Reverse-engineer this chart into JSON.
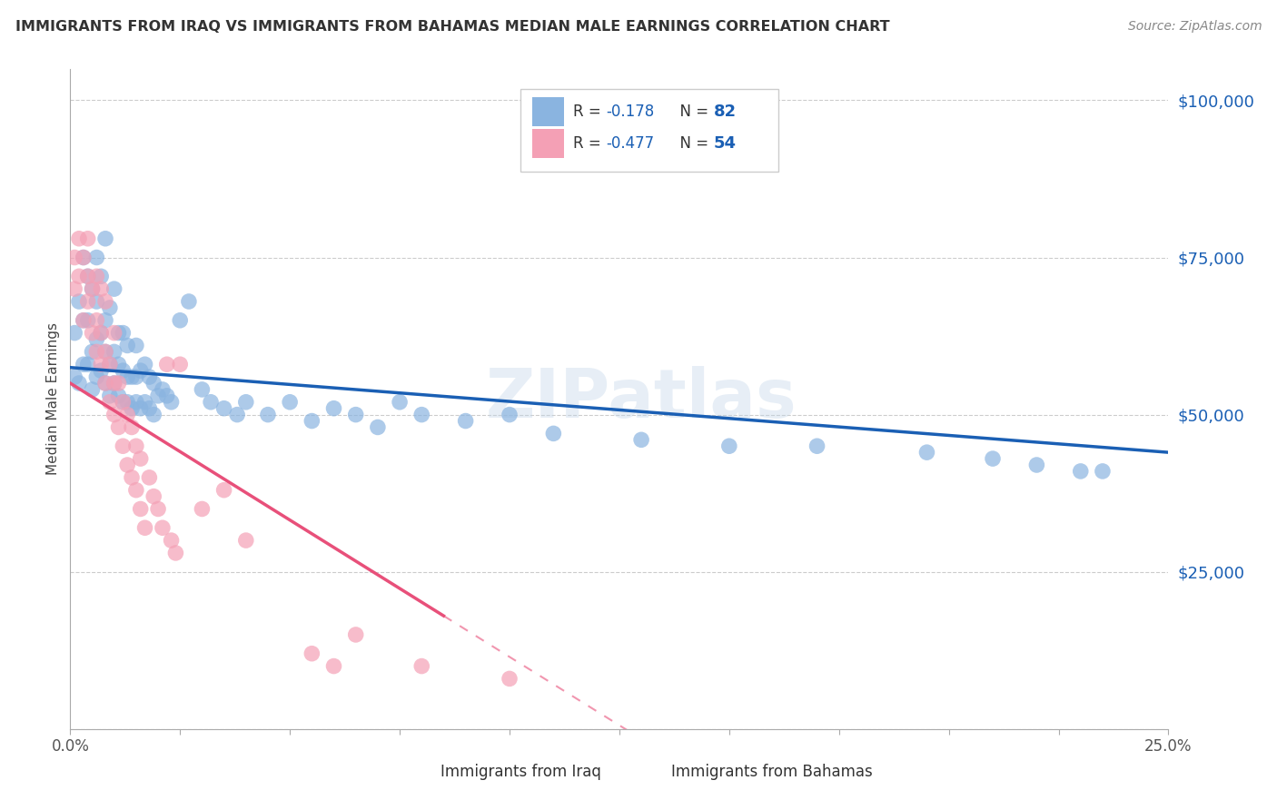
{
  "title": "IMMIGRANTS FROM IRAQ VS IMMIGRANTS FROM BAHAMAS MEDIAN MALE EARNINGS CORRELATION CHART",
  "source": "Source: ZipAtlas.com",
  "ylabel": "Median Male Earnings",
  "yticks": [
    0,
    25000,
    50000,
    75000,
    100000
  ],
  "ytick_labels": [
    "",
    "$25,000",
    "$50,000",
    "$75,000",
    "$100,000"
  ],
  "xlim": [
    0.0,
    0.25
  ],
  "ylim": [
    0,
    105000
  ],
  "iraq_R": "-0.178",
  "iraq_N": "82",
  "bahamas_R": "-0.477",
  "bahamas_N": "54",
  "iraq_color": "#8ab4e0",
  "bahamas_color": "#f4a0b5",
  "iraq_line_color": "#1a5fb4",
  "bahamas_line_color": "#e8507a",
  "watermark": "ZIPatlas",
  "background_color": "#ffffff",
  "iraq_scatter_x": [
    0.001,
    0.001,
    0.002,
    0.002,
    0.003,
    0.003,
    0.003,
    0.004,
    0.004,
    0.004,
    0.005,
    0.005,
    0.005,
    0.006,
    0.006,
    0.006,
    0.006,
    0.007,
    0.007,
    0.007,
    0.008,
    0.008,
    0.008,
    0.008,
    0.009,
    0.009,
    0.009,
    0.01,
    0.01,
    0.01,
    0.011,
    0.011,
    0.011,
    0.012,
    0.012,
    0.012,
    0.013,
    0.013,
    0.013,
    0.014,
    0.014,
    0.015,
    0.015,
    0.015,
    0.016,
    0.016,
    0.017,
    0.017,
    0.018,
    0.018,
    0.019,
    0.019,
    0.02,
    0.021,
    0.022,
    0.023,
    0.025,
    0.027,
    0.03,
    0.032,
    0.035,
    0.038,
    0.04,
    0.045,
    0.05,
    0.055,
    0.06,
    0.065,
    0.07,
    0.075,
    0.08,
    0.09,
    0.1,
    0.11,
    0.13,
    0.15,
    0.17,
    0.195,
    0.21,
    0.22,
    0.23,
    0.235
  ],
  "iraq_scatter_y": [
    56000,
    63000,
    55000,
    68000,
    58000,
    65000,
    75000,
    72000,
    58000,
    65000,
    54000,
    60000,
    70000,
    56000,
    62000,
    68000,
    75000,
    57000,
    63000,
    72000,
    55000,
    60000,
    65000,
    78000,
    53000,
    58000,
    67000,
    55000,
    60000,
    70000,
    53000,
    58000,
    63000,
    52000,
    57000,
    63000,
    52000,
    56000,
    61000,
    51000,
    56000,
    52000,
    56000,
    61000,
    51000,
    57000,
    52000,
    58000,
    51000,
    56000,
    50000,
    55000,
    53000,
    54000,
    53000,
    52000,
    65000,
    68000,
    54000,
    52000,
    51000,
    50000,
    52000,
    50000,
    52000,
    49000,
    51000,
    50000,
    48000,
    52000,
    50000,
    49000,
    50000,
    47000,
    46000,
    45000,
    45000,
    44000,
    43000,
    42000,
    41000,
    41000
  ],
  "bahamas_scatter_x": [
    0.001,
    0.001,
    0.002,
    0.002,
    0.003,
    0.003,
    0.004,
    0.004,
    0.004,
    0.005,
    0.005,
    0.006,
    0.006,
    0.006,
    0.007,
    0.007,
    0.007,
    0.008,
    0.008,
    0.008,
    0.009,
    0.009,
    0.01,
    0.01,
    0.01,
    0.011,
    0.011,
    0.012,
    0.012,
    0.013,
    0.013,
    0.014,
    0.014,
    0.015,
    0.015,
    0.016,
    0.016,
    0.017,
    0.018,
    0.019,
    0.02,
    0.021,
    0.022,
    0.023,
    0.024,
    0.025,
    0.03,
    0.035,
    0.04,
    0.055,
    0.06,
    0.065,
    0.08,
    0.1
  ],
  "bahamas_scatter_y": [
    70000,
    75000,
    72000,
    78000,
    65000,
    75000,
    68000,
    72000,
    78000,
    63000,
    70000,
    60000,
    65000,
    72000,
    58000,
    63000,
    70000,
    55000,
    60000,
    68000,
    52000,
    58000,
    50000,
    55000,
    63000,
    48000,
    55000,
    45000,
    52000,
    42000,
    50000,
    40000,
    48000,
    38000,
    45000,
    35000,
    43000,
    32000,
    40000,
    37000,
    35000,
    32000,
    58000,
    30000,
    28000,
    58000,
    35000,
    38000,
    30000,
    12000,
    10000,
    15000,
    10000,
    8000
  ],
  "iraq_line_x0": 0.0,
  "iraq_line_x1": 0.25,
  "iraq_line_y0": 57500,
  "iraq_line_y1": 44000,
  "bahamas_line_solid_x0": 0.0,
  "bahamas_line_solid_x1": 0.085,
  "bahamas_line_y0": 55000,
  "bahamas_line_y1": 18000,
  "bahamas_line_dash_x0": 0.085,
  "bahamas_line_dash_x1": 0.25
}
